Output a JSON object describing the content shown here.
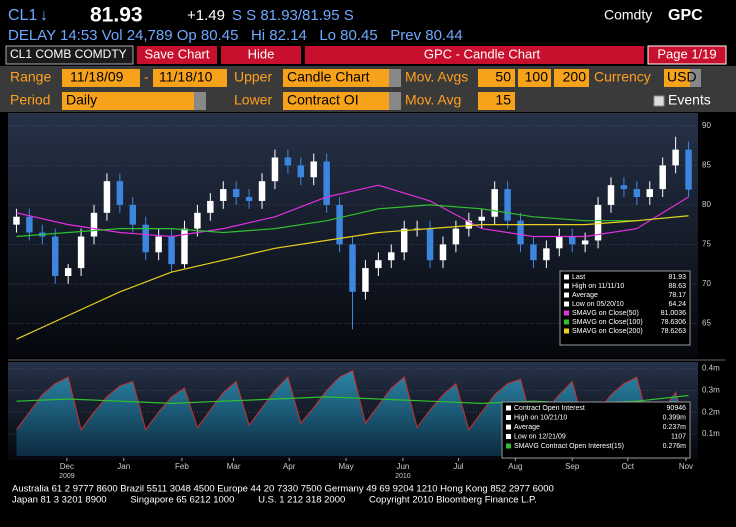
{
  "header": {
    "ticker": "CL1",
    "arrow": "↓",
    "last": "81.93",
    "change": "+1.49",
    "quote": "S S 81.93/81.95 S",
    "brand": "Comdty",
    "brand_fn": "GPC",
    "line2": "DELAY 14:53 Vol 24,789 Op 80.45   Hi 82.14   Lo 80.45   Prev 80.44"
  },
  "toolbar": {
    "security": "CL1 COMB COMDTY",
    "save": "Save Chart",
    "hide": "Hide",
    "title": "GPC - Candle Chart",
    "page": "Page 1/19"
  },
  "controls": {
    "range_label": "Range",
    "start": "11/18/09",
    "dash": "-",
    "end": "11/18/10",
    "upper_label": "Upper",
    "upper": "Candle Chart",
    "movavgs_label": "Mov. Avgs",
    "movavgs": [
      "50",
      "100",
      "200"
    ],
    "currency_label": "Currency",
    "currency": "USD",
    "period_label": "Period",
    "period": "Daily",
    "lower_label": "Lower",
    "lower": "Contract OI",
    "movavg_label": "Mov. Avg",
    "movavg": "15",
    "events": "Events"
  },
  "chart_data": [
    {
      "type": "candlestick",
      "categories": [
        null,
        null,
        null,
        null,
        null,
        null,
        null,
        null,
        null,
        null,
        null,
        null,
        null,
        null,
        null,
        null,
        null,
        null,
        null,
        null,
        null,
        null,
        null,
        null,
        null,
        null,
        null,
        null,
        null,
        null,
        null,
        null,
        null,
        null,
        null,
        null,
        null,
        null,
        null,
        null,
        null,
        null,
        null,
        null,
        null,
        null,
        null,
        null,
        null,
        null,
        null,
        null,
        null
      ],
      "open": [
        77.5,
        78.5,
        76.5,
        76,
        71,
        72,
        76,
        79,
        83,
        80,
        77.5,
        74,
        76,
        72.5,
        77,
        79,
        80.5,
        82,
        81,
        80.5,
        83,
        86,
        85,
        83.5,
        85.5,
        80,
        75,
        69,
        72,
        73,
        74,
        77,
        77,
        73,
        75,
        77,
        78,
        78.5,
        82,
        78,
        75,
        73,
        74.5,
        76,
        75,
        75.5,
        80,
        82.5,
        82,
        81,
        82,
        85,
        87
      ],
      "high": [
        79.5,
        79.5,
        77.5,
        77,
        72.5,
        77,
        80,
        84,
        84,
        81,
        78.5,
        77,
        77,
        78,
        80,
        81.5,
        83,
        83,
        82,
        84,
        87,
        87,
        86,
        86.5,
        86.5,
        81,
        76,
        73,
        74,
        75,
        78,
        78,
        78,
        76,
        78,
        79,
        79.5,
        83,
        83,
        79,
        76,
        75.5,
        77,
        77,
        76.5,
        81,
        83.5,
        83.5,
        83,
        83,
        86,
        88.63,
        88
      ],
      "low": [
        76.5,
        75.5,
        75,
        70,
        70,
        71,
        75,
        78,
        79,
        76.5,
        73,
        73,
        71.5,
        72,
        76,
        78,
        79.5,
        80,
        79.5,
        79.5,
        82,
        84,
        82.5,
        82.5,
        79,
        74,
        64.24,
        68,
        71,
        72,
        73,
        76,
        72,
        72,
        74,
        76,
        77,
        77.5,
        77,
        74,
        72,
        72,
        73.5,
        74,
        74,
        74.5,
        79,
        81,
        80,
        80,
        81,
        84,
        81
      ],
      "close": [
        78.5,
        76.5,
        76,
        71,
        72,
        76,
        79,
        83,
        80,
        77.5,
        74,
        76,
        72.5,
        77,
        79,
        80.5,
        82,
        81,
        80.5,
        83,
        86,
        85,
        83.5,
        85.5,
        80,
        75,
        69,
        72,
        73,
        74,
        77,
        77,
        73,
        75,
        77,
        78,
        78.5,
        82,
        78,
        75,
        73,
        74.5,
        76,
        75,
        75.5,
        80,
        82.5,
        82,
        81,
        82,
        85,
        87,
        81.93
      ],
      "up_color": "#ffffff",
      "down_color": "#3d86e0",
      "xlim": [
        -0.5,
        52.5
      ],
      "ylim": [
        61,
        91
      ],
      "yticks": [
        65,
        70,
        75,
        80,
        85,
        90
      ],
      "grid": true,
      "series": [
        {
          "name": "SMAVG on Close(50)",
          "color": "#e030e0",
          "x": [
            0,
            4,
            8,
            12,
            16,
            20,
            24,
            28,
            32,
            36,
            40,
            44,
            48,
            52
          ],
          "values": [
            79,
            77.5,
            76.5,
            76,
            77,
            78.5,
            81,
            82.5,
            80.5,
            77,
            76,
            76,
            77,
            81.0036
          ]
        },
        {
          "name": "SMAVG on Close(100)",
          "color": "#30c030",
          "x": [
            0,
            4,
            8,
            12,
            16,
            20,
            24,
            28,
            32,
            36,
            40,
            44,
            48,
            52
          ],
          "values": [
            76,
            76.5,
            77,
            77,
            76.5,
            77,
            78,
            79.5,
            80,
            79.5,
            78.5,
            78,
            78,
            78.6306
          ]
        },
        {
          "name": "SMAVG on Close(200)",
          "color": "#e8d020",
          "x": [
            0,
            4,
            8,
            12,
            16,
            20,
            24,
            28,
            32,
            36,
            40,
            44,
            48,
            52
          ],
          "values": [
            63,
            66,
            69,
            71.5,
            73,
            74.5,
            75.5,
            76.5,
            77,
            77.5,
            77.5,
            77.5,
            78,
            78.6263
          ]
        }
      ],
      "legend": [
        {
          "label": "Last",
          "value": 81.93
        },
        {
          "label": "High on 11/11/10",
          "value": 88.63
        },
        {
          "label": "Average",
          "value": 78.17
        },
        {
          "label": "Low on 05/20/10",
          "value": 64.24
        }
      ]
    },
    {
      "type": "area",
      "xlim": [
        -0.5,
        52.5
      ],
      "ylim": [
        0,
        0.42
      ],
      "yticks": [
        {
          "value": 0.1,
          "label": "0.1m"
        },
        {
          "value": 0.2,
          "label": "0.2m"
        },
        {
          "value": 0.3,
          "label": "0.3m"
        },
        {
          "value": 0.4,
          "label": "0.4m"
        }
      ],
      "xticks": [
        {
          "value": 3.9,
          "label": "Dec"
        },
        {
          "value": 8.3,
          "label": "Jan"
        },
        {
          "value": 12.8,
          "label": "Feb"
        },
        {
          "value": 16.8,
          "label": "Mar"
        },
        {
          "value": 21.1,
          "label": "Apr"
        },
        {
          "value": 25.5,
          "label": "May"
        },
        {
          "value": 29.9,
          "label": "Jun"
        },
        {
          "value": 34.2,
          "label": "Jul"
        },
        {
          "value": 38.6,
          "label": "Aug"
        },
        {
          "value": 43,
          "label": "Sep"
        },
        {
          "value": 47.3,
          "label": "Oct"
        },
        {
          "value": 51.8,
          "label": "Nov"
        }
      ],
      "year_ticks": [
        {
          "value": 3.9,
          "label": "2009"
        },
        {
          "value": 29.9,
          "label": "2010"
        }
      ],
      "series": [
        {
          "name": "Contract Open Interest",
          "color": "#1f6f8f",
          "line_color": "#c83030",
          "last_label": "90946",
          "values": [
            0.12,
            0.2,
            0.28,
            0.33,
            0.36,
            0.12,
            0.2,
            0.27,
            0.32,
            0.34,
            0.12,
            0.2,
            0.27,
            0.31,
            0.13,
            0.21,
            0.29,
            0.34,
            0.14,
            0.22,
            0.3,
            0.36,
            0.15,
            0.22,
            0.3,
            0.36,
            0.39,
            0.15,
            0.23,
            0.31,
            0.36,
            0.13,
            0.21,
            0.28,
            0.33,
            0.12,
            0.2,
            0.28,
            0.33,
            0.35,
            0.13,
            0.21,
            0.28,
            0.34,
            0.12,
            0.2,
            0.28,
            0.33,
            0.36,
            0.13,
            0.21,
            0.29,
            0.091
          ]
        },
        {
          "name": "SMAVG Contract Open Interest(15)",
          "color": "#30c030",
          "last_label": "0.276m",
          "x": [
            0,
            4,
            8,
            12,
            16,
            20,
            24,
            28,
            32,
            36,
            40,
            44,
            48,
            52
          ],
          "values": [
            0.25,
            0.26,
            0.25,
            0.24,
            0.25,
            0.26,
            0.27,
            0.26,
            0.25,
            0.24,
            0.25,
            0.24,
            0.25,
            0.276
          ]
        }
      ],
      "legend": [
        {
          "label": "High on 10/21/10",
          "value": "0.399m"
        },
        {
          "label": "Average",
          "value": "0.237m"
        },
        {
          "label": "Low on 12/21/09",
          "value": "1107"
        }
      ]
    }
  ],
  "footer": [
    "Australia 61 2 9777 8600 Brazil 5511 3048 4500 Europe 44 20 7330 7500 Germany 49 69 9204 1210 Hong Kong 852 2977 6000",
    "Japan 81 3 3201 8900         Singapore 65 6212 1000         U.S. 1 212 318 2000         Copyright 2010 Bloomberg Finance L.P."
  ]
}
